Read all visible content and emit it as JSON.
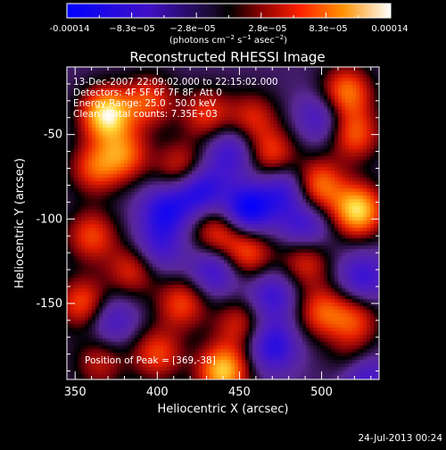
{
  "colorbar": {
    "ticks": [
      "-0.00014",
      "−8.3e−05",
      "−2.8e−05",
      "2.8e−05",
      "8.3e−05",
      "0.00014"
    ],
    "unit_label": "(photons cm",
    "unit_exp1": "−2",
    "unit_mid": " s",
    "unit_exp2": "−1",
    "unit_end": " asec",
    "unit_exp3": "−2",
    "unit_close": ")"
  },
  "chart_data": {
    "type": "heatmap",
    "title": "Reconstructed RHESSI Image",
    "xlabel": "Heliocentric X (arcsec)",
    "ylabel": "Heliocentric Y (arcsec)",
    "xlim": [
      345,
      535
    ],
    "ylim": [
      -195,
      -10
    ],
    "xticks": [
      350,
      400,
      450,
      500
    ],
    "yticks": [
      -50,
      -100,
      -150
    ],
    "colorbar_range": [
      -0.00014,
      0.00014
    ],
    "annotations": [
      "13-Dec-2007 22:09:02.000 to 22:15:02.000",
      "Detectors: 4F 5F 6F 7F 8F, Att 0",
      "Energy Range: 25.0 - 50.0 keV",
      "Clean   Total counts: 7.35E+03",
      "Position of Peak = [369,-38]"
    ],
    "blobs": [
      {
        "x": 369,
        "y": -38,
        "v": 1.0
      },
      {
        "x": 395,
        "y": -30,
        "v": 0.55
      },
      {
        "x": 430,
        "y": -38,
        "v": 0.5
      },
      {
        "x": 458,
        "y": -40,
        "v": 0.45
      },
      {
        "x": 515,
        "y": -25,
        "v": 0.7
      },
      {
        "x": 520,
        "y": -50,
        "v": 0.6
      },
      {
        "x": 362,
        "y": -70,
        "v": 0.55
      },
      {
        "x": 380,
        "y": -62,
        "v": 0.6
      },
      {
        "x": 415,
        "y": -70,
        "v": 0.55
      },
      {
        "x": 470,
        "y": -62,
        "v": 0.55
      },
      {
        "x": 498,
        "y": -80,
        "v": 0.7
      },
      {
        "x": 522,
        "y": -95,
        "v": 0.95
      },
      {
        "x": 490,
        "y": -125,
        "v": 0.5
      },
      {
        "x": 436,
        "y": -108,
        "v": 0.55
      },
      {
        "x": 455,
        "y": -120,
        "v": 0.6
      },
      {
        "x": 360,
        "y": -110,
        "v": 0.55
      },
      {
        "x": 385,
        "y": -130,
        "v": 0.5
      },
      {
        "x": 355,
        "y": -150,
        "v": 0.6
      },
      {
        "x": 415,
        "y": -150,
        "v": 0.55
      },
      {
        "x": 450,
        "y": -162,
        "v": 0.45
      },
      {
        "x": 500,
        "y": -155,
        "v": 0.55
      },
      {
        "x": 520,
        "y": -160,
        "v": 0.5
      },
      {
        "x": 400,
        "y": -180,
        "v": 0.55
      },
      {
        "x": 440,
        "y": -190,
        "v": 0.9
      },
      {
        "x": 365,
        "y": -185,
        "v": 0.4
      },
      {
        "x": 520,
        "y": -185,
        "v": 0.4
      },
      {
        "x": 455,
        "y": -95,
        "v": -0.75
      },
      {
        "x": 425,
        "y": -82,
        "v": -0.65
      },
      {
        "x": 405,
        "y": -95,
        "v": -0.55
      },
      {
        "x": 478,
        "y": -82,
        "v": -0.5
      },
      {
        "x": 490,
        "y": -105,
        "v": -0.45
      },
      {
        "x": 445,
        "y": -60,
        "v": -0.45
      },
      {
        "x": 435,
        "y": -130,
        "v": -0.5
      },
      {
        "x": 470,
        "y": -145,
        "v": -0.45
      },
      {
        "x": 400,
        "y": -118,
        "v": -0.4
      },
      {
        "x": 500,
        "y": -40,
        "v": -0.4
      },
      {
        "x": 372,
        "y": -160,
        "v": -0.4
      },
      {
        "x": 470,
        "y": -175,
        "v": -0.55
      },
      {
        "x": 525,
        "y": -135,
        "v": -0.45
      },
      {
        "x": 525,
        "y": -192,
        "v": -0.6
      }
    ]
  },
  "footer": {
    "timestamp": "24-Jul-2013 00:24"
  }
}
